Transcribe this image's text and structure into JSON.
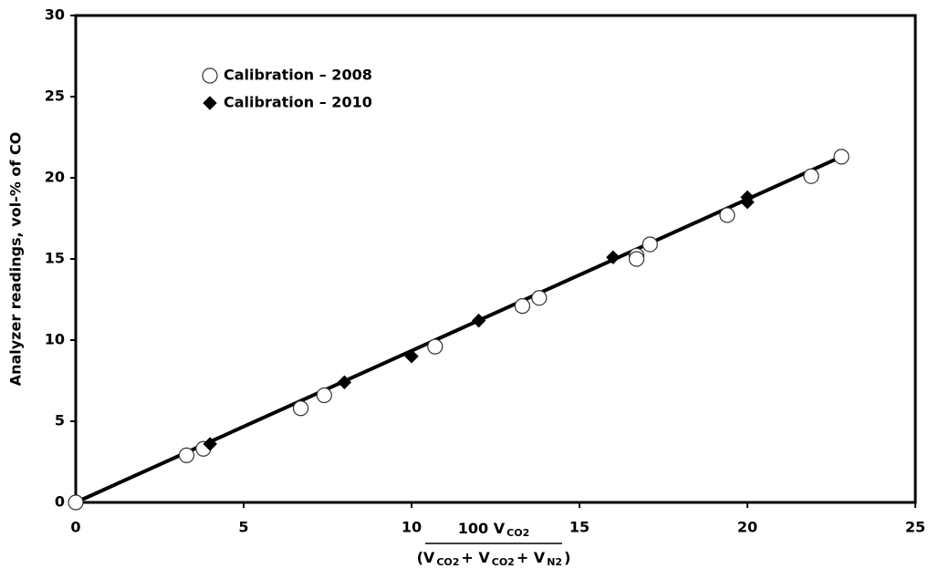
{
  "chart_data": {
    "type": "scatter",
    "ylabel": "Analyzer readings, vol-% of CO",
    "xlabel_numerator": [
      "100 V",
      "CO2"
    ],
    "xlabel_denominator": [
      "(V",
      "CO2",
      "+ V",
      "CO2",
      "+ V",
      "N2",
      ")"
    ],
    "xlim": [
      0,
      25
    ],
    "xticks": [
      0,
      5,
      10,
      15,
      20,
      25
    ],
    "ylim": [
      0,
      30
    ],
    "yticks": [
      0,
      5,
      10,
      15,
      20,
      25,
      30
    ],
    "grid": false,
    "legend": "upper left",
    "series": [
      {
        "name": "Calibration – 2008",
        "marker": "circle",
        "color": "#ffffff",
        "x": [
          0,
          3.3,
          3.8,
          6.7,
          7.4,
          10.7,
          13.3,
          13.8,
          16.7,
          16.7,
          17.1,
          19.4,
          21.9,
          22.8
        ],
        "values": [
          0,
          2.9,
          3.3,
          5.8,
          6.6,
          9.6,
          12.1,
          12.6,
          15.2,
          15.0,
          15.9,
          17.7,
          20.1,
          21.3
        ]
      },
      {
        "name": "Calibration – 2010",
        "marker": "diamond",
        "color": "#000000",
        "x": [
          4,
          8,
          10,
          12,
          16,
          20,
          20
        ],
        "values": [
          3.6,
          7.4,
          9.0,
          11.2,
          15.1,
          18.8,
          18.5
        ]
      }
    ],
    "fit_line": {
      "color": "#000000",
      "x": [
        0,
        22.8
      ],
      "values": [
        0,
        21.3
      ]
    }
  }
}
